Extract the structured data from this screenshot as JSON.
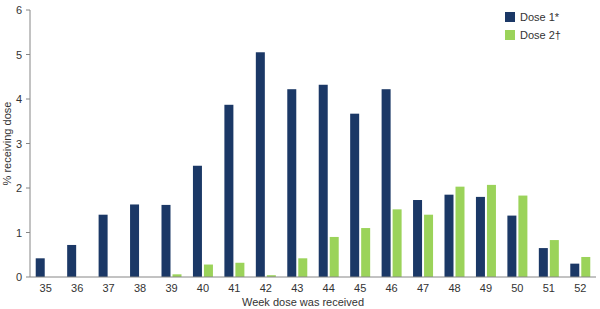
{
  "chart_data": {
    "type": "bar",
    "x_label": "Week dose was received",
    "y_label": "% receiving dose",
    "categories": [
      "35",
      "36",
      "37",
      "38",
      "39",
      "40",
      "41",
      "42",
      "43",
      "44",
      "45",
      "46",
      "47",
      "48",
      "49",
      "50",
      "51",
      "52"
    ],
    "series": [
      {
        "name": "Dose 1*",
        "color": "#1b3866",
        "values": [
          0.42,
          0.72,
          1.4,
          1.63,
          1.62,
          2.5,
          3.87,
          5.05,
          4.22,
          4.32,
          3.67,
          4.22,
          1.73,
          1.85,
          1.8,
          1.38,
          0.65,
          0.3
        ]
      },
      {
        "name": "Dose 2†",
        "color": "#9bd35a",
        "values": [
          0,
          0,
          0,
          0,
          0.06,
          0.28,
          0.32,
          0.04,
          0.42,
          0.9,
          1.1,
          1.52,
          1.4,
          2.03,
          2.07,
          1.83,
          0.83,
          0.45
        ]
      }
    ],
    "ylim": [
      0,
      6
    ],
    "yticks": [
      0,
      1,
      2,
      3,
      4,
      5,
      6
    ],
    "grid": false,
    "legend": "top-right"
  }
}
